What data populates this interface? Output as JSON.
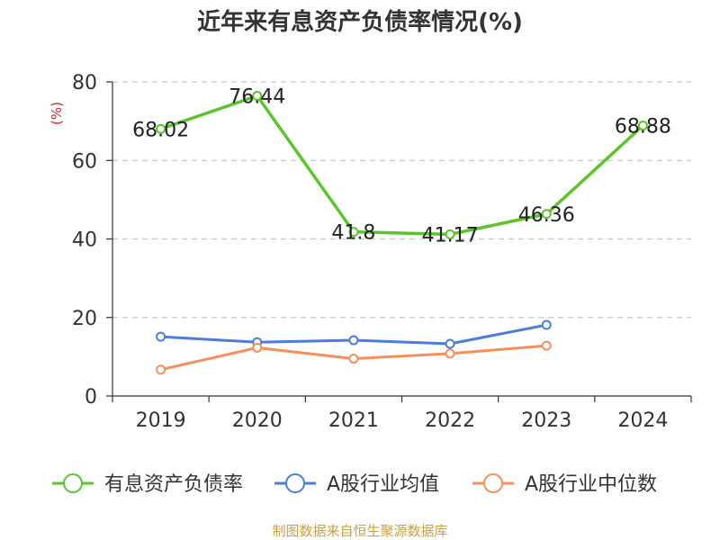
{
  "chart_data": {
    "type": "line",
    "title": "近年来有息资产负债率情况(%)",
    "ylabel": "(%)",
    "xlabel": "",
    "categories": [
      "2019",
      "2020",
      "2021",
      "2022",
      "2023",
      "2024"
    ],
    "ylim": [
      0,
      80
    ],
    "yticks": [
      0,
      20,
      40,
      60,
      80
    ],
    "grid": true,
    "legend_position": "bottom",
    "series": [
      {
        "name": "有息资产负债率",
        "color": "#5cc42c",
        "values": [
          68.02,
          76.44,
          41.8,
          41.17,
          46.36,
          68.88
        ],
        "labels": [
          "68.02",
          "76.44",
          "41.8",
          "41.17",
          "46.36",
          "68.88"
        ]
      },
      {
        "name": "A股行业均值",
        "color": "#4a7fd8",
        "values": [
          15.1,
          13.7,
          14.2,
          13.3,
          18.1,
          null
        ]
      },
      {
        "name": "A股行业中位数",
        "color": "#f4905a",
        "values": [
          6.7,
          12.3,
          9.5,
          10.8,
          12.8,
          null
        ]
      }
    ]
  },
  "source": "制图数据来自恒生聚源数据库"
}
